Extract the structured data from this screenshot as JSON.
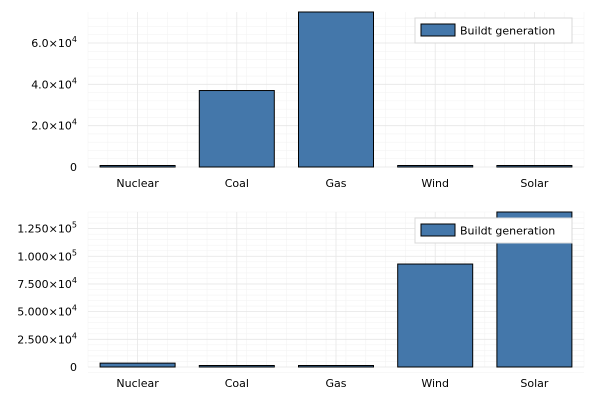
{
  "colors": {
    "bar": "#4477aa",
    "grid_major": "#e6e6e6",
    "grid_minor": "#f3f3f3"
  },
  "chart_data": [
    {
      "type": "bar",
      "categories": [
        "Nuclear",
        "Coal",
        "Gas",
        "Wind",
        "Solar"
      ],
      "values": [
        300,
        37000,
        75000,
        300,
        300
      ],
      "ylim": [
        0,
        75000
      ],
      "yticks": [
        0,
        20000,
        40000,
        60000
      ],
      "ytick_labels": [
        {
          "mantissa": "0",
          "exp": ""
        },
        {
          "mantissa": "2.0×10",
          "exp": "4"
        },
        {
          "mantissa": "4.0×10",
          "exp": "4"
        },
        {
          "mantissa": "6.0×10",
          "exp": "4"
        }
      ],
      "legend": {
        "label": "Buildt generation",
        "position": "top-right"
      },
      "grid": true
    },
    {
      "type": "bar",
      "categories": [
        "Nuclear",
        "Coal",
        "Gas",
        "Wind",
        "Solar"
      ],
      "values": [
        3500,
        300,
        300,
        93000,
        140000
      ],
      "ylim": [
        0,
        140000
      ],
      "yticks": [
        0,
        25000,
        50000,
        75000,
        100000,
        125000
      ],
      "ytick_labels": [
        {
          "mantissa": "0",
          "exp": ""
        },
        {
          "mantissa": "2.500×10",
          "exp": "4"
        },
        {
          "mantissa": "5.000×10",
          "exp": "4"
        },
        {
          "mantissa": "7.500×10",
          "exp": "4"
        },
        {
          "mantissa": "1.000×10",
          "exp": "5"
        },
        {
          "mantissa": "1.250×10",
          "exp": "5"
        }
      ],
      "legend": {
        "label": "Buildt generation",
        "position": "top-right"
      },
      "grid": true
    }
  ]
}
